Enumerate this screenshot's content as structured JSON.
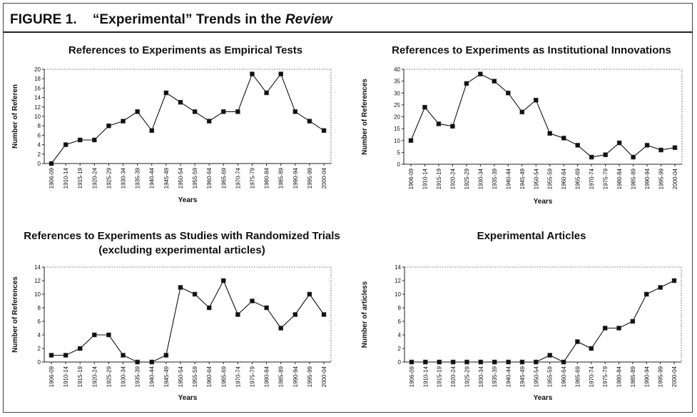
{
  "figure": {
    "label": "FIGURE 1.",
    "title_prefix": "“Experimental” Trends in the ",
    "title_italic": "Review"
  },
  "chart_data": [
    {
      "type": "line",
      "title": "References to Experiments as Empirical Tests",
      "xlabel": "Years",
      "ylabel": "Number of Referen",
      "categories": [
        "1906-09",
        "1910-14",
        "1915-19",
        "1920-24",
        "1925-29",
        "1930-34",
        "1935-39",
        "1940-44",
        "1945-49",
        "1950-54",
        "1955-59",
        "1960-64",
        "1965-69",
        "1970-74",
        "1975-79",
        "1980-84",
        "1985-89",
        "1990-94",
        "1995-99",
        "2000-04"
      ],
      "values": [
        0,
        4,
        5,
        5,
        8,
        9,
        11,
        7,
        15,
        13,
        11,
        9,
        11,
        11,
        19,
        15,
        19,
        11,
        9,
        7
      ],
      "ylim": [
        0,
        20
      ],
      "yticks": [
        0,
        2,
        4,
        6,
        8,
        10,
        12,
        14,
        16,
        18,
        20
      ],
      "grid": false
    },
    {
      "type": "line",
      "title": "References to Experiments as Institutional Innovations",
      "xlabel": "Years",
      "ylabel": "Number of References",
      "categories": [
        "1906-09",
        "1910-14",
        "1915-19",
        "1920-24",
        "1925-29",
        "1930-34",
        "1935-39",
        "1940-44",
        "1945-49",
        "1950-54",
        "1955-59",
        "1960-64",
        "1965-69",
        "1970-74",
        "1975-79",
        "1980-84",
        "1985-89",
        "1990-94",
        "1995-99",
        "2000-04"
      ],
      "values": [
        10,
        24,
        17,
        16,
        34,
        38,
        35,
        30,
        22,
        27,
        13,
        11,
        8,
        3,
        4,
        9,
        3,
        8,
        6,
        7
      ],
      "ylim": [
        0,
        40
      ],
      "yticks": [
        0,
        5,
        10,
        15,
        20,
        25,
        30,
        35,
        40
      ],
      "grid": false
    },
    {
      "type": "line",
      "title": "References to Experiments as Studies with Randomized Trials (excluding experimental articles)",
      "xlabel": "Years",
      "ylabel": "Number of References",
      "categories": [
        "1906-09",
        "1910-14",
        "1915-19",
        "1920-24",
        "1925-29",
        "1930-34",
        "1935-39",
        "1940-44",
        "1945-49",
        "1950-54",
        "1955-59",
        "1960-64",
        "1965-69",
        "1970-74",
        "1975-79",
        "1980-84",
        "1985-89",
        "1990-94",
        "1995-99",
        "2000-04"
      ],
      "values": [
        1,
        1,
        2,
        4,
        4,
        1,
        0,
        0,
        1,
        11,
        10,
        8,
        12,
        7,
        9,
        8,
        5,
        7,
        10,
        7
      ],
      "ylim": [
        0,
        14
      ],
      "yticks": [
        0,
        2,
        4,
        6,
        8,
        10,
        12,
        14
      ],
      "grid": false
    },
    {
      "type": "line",
      "title": "Experimental Articles",
      "xlabel": "Years",
      "ylabel": "Number of articless",
      "categories": [
        "1906-09",
        "1910-14",
        "1915-19",
        "1920-24",
        "1925-29",
        "1930-34",
        "1935-39",
        "1940-44",
        "1945-49",
        "1950-54",
        "1955-59",
        "1960-64",
        "1965-69",
        "1970-74",
        "1975-79",
        "1980-84",
        "1985-89",
        "1990-94",
        "1995-99",
        "2000-04"
      ],
      "values": [
        0,
        0,
        0,
        0,
        0,
        0,
        0,
        0,
        0,
        0,
        1,
        0,
        3,
        2,
        5,
        5,
        6,
        10,
        11,
        12
      ],
      "ylim": [
        0,
        14
      ],
      "yticks": [
        0,
        2,
        4,
        6,
        8,
        10,
        12,
        14
      ],
      "grid": false
    }
  ]
}
